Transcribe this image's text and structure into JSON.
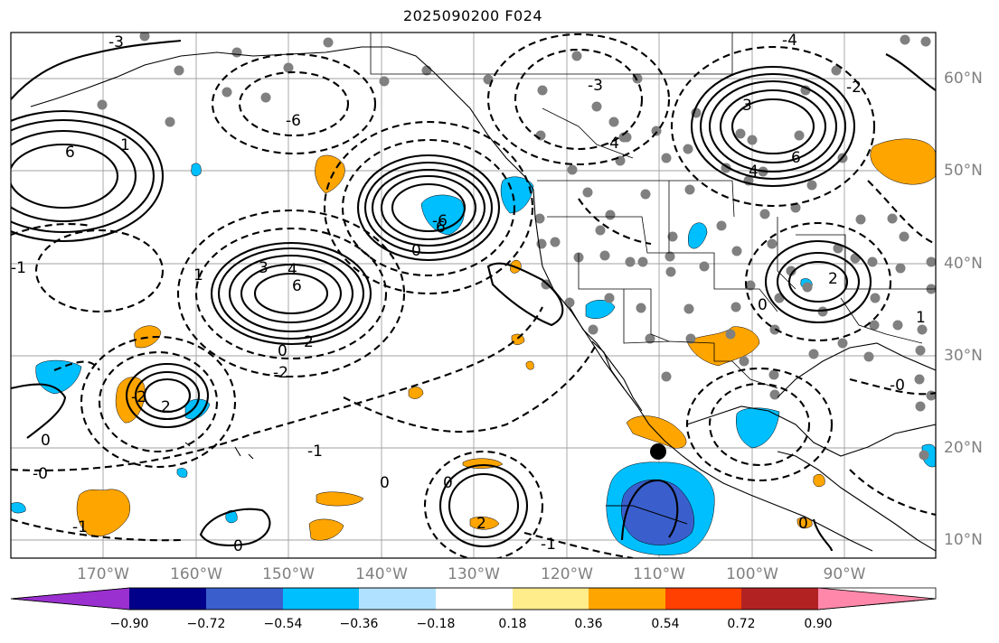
{
  "title": "2025090200 F024",
  "map": {
    "lon_labels": [
      "170°W",
      "160°W",
      "150°W",
      "140°W",
      "130°W",
      "120°W",
      "110°W",
      "100°W",
      "90°W"
    ],
    "lat_labels": [
      "60°N",
      "50°N",
      "40°N",
      "30°N",
      "20°N",
      "10°N"
    ],
    "contour_labels": [
      {
        "text": "6"
      },
      {
        "text": "6"
      },
      {
        "text": "6"
      },
      {
        "text": "6"
      },
      {
        "text": "2"
      },
      {
        "text": "2"
      },
      {
        "text": "2"
      },
      {
        "text": "2"
      },
      {
        "text": "4"
      },
      {
        "text": "4"
      },
      {
        "text": "3"
      },
      {
        "text": "3"
      },
      {
        "text": "0"
      },
      {
        "text": "0"
      },
      {
        "text": "0"
      },
      {
        "text": "0"
      },
      {
        "text": "0"
      },
      {
        "text": "0"
      },
      {
        "text": "0"
      },
      {
        "text": "0"
      },
      {
        "text": "1"
      },
      {
        "text": "1"
      },
      {
        "text": "1"
      },
      {
        "text": "-1"
      },
      {
        "text": "-2"
      },
      {
        "text": "-2"
      },
      {
        "text": "-2"
      },
      {
        "text": "-3"
      },
      {
        "text": "-3"
      },
      {
        "text": "-4"
      },
      {
        "text": "-4"
      },
      {
        "text": "-6"
      },
      {
        "text": "-6"
      },
      {
        "text": "-0"
      },
      {
        "text": "-0"
      },
      {
        "text": "-1"
      },
      {
        "text": "-1"
      },
      {
        "text": "-1"
      }
    ]
  },
  "colorbar": {
    "colors": [
      "#9b30d0",
      "#00008b",
      "#3a5fcd",
      "#00bfff",
      "#b0e2ff",
      "#ffffff",
      "#ffec8b",
      "#ffa500",
      "#ff4000",
      "#b22222",
      "#ff88aa"
    ],
    "tick_labels": [
      "−0.90",
      "−0.72",
      "−0.54",
      "−0.36",
      "−0.18",
      "0.18",
      "0.36",
      "0.54",
      "0.72",
      "0.90"
    ]
  }
}
